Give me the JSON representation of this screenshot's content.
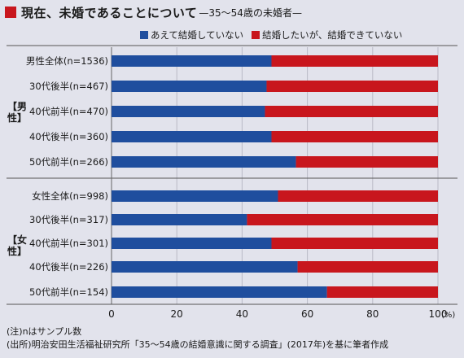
{
  "title": {
    "main": "現在、未婚であることについて",
    "sub": "—35〜54歳の未婚者—"
  },
  "colors": {
    "background": "#e2e3ec",
    "accent": "#c8161d",
    "series1": "#1f4e9e",
    "series2": "#c8161d"
  },
  "groups": [
    {
      "label_top": "【男",
      "label_bottom": "性】"
    },
    {
      "label_top": "【女",
      "label_bottom": "性】"
    }
  ],
  "chart_data": {
    "type": "bar",
    "orientation": "horizontal",
    "stacked": true,
    "categories": [
      "男性全体(n=1536)",
      "30代後半(n=467)",
      "40代前半(n=470)",
      "40代後半(n=360)",
      "50代前半(n=266)",
      "女性全体(n=998)",
      "30代後半(n=317)",
      "40代前半(n=301)",
      "40代後半(n=226)",
      "50代前半(n=154)"
    ],
    "series": [
      {
        "name": "あえて結婚していない",
        "values": [
          49,
          47.5,
          47,
          49,
          56.5,
          51,
          41.5,
          49,
          57,
          66
        ]
      },
      {
        "name": "結婚したいが、結婚できていない",
        "values": [
          51,
          52.5,
          53,
          51,
          43.5,
          49,
          58.5,
          51,
          43,
          34
        ]
      }
    ],
    "xlim": [
      0,
      100
    ],
    "xticks": [
      "0",
      "20",
      "40",
      "60",
      "80",
      "100"
    ],
    "x_unit": "(%)",
    "legend_position": "top"
  },
  "notes": [
    "(注)nはサンプル数",
    "(出所)明治安田生活福祉研究所「35〜54歳の結婚意識に関する調査」(2017年)を基に筆者作成"
  ]
}
